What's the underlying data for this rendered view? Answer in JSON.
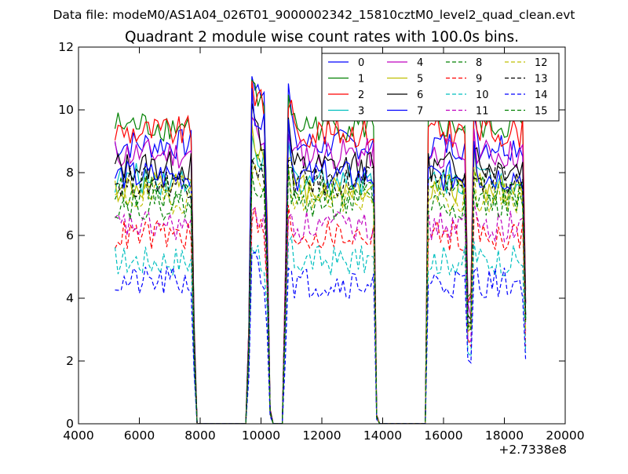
{
  "figure": {
    "suptitle": "Data file: modeM0/AS1A04_026T01_9000002342_15810cztM0_level2_quad_clean.evt"
  },
  "chart_data": {
    "type": "line",
    "title": "Quadrant 2 module wise count rates with 100.0s bins.",
    "xlabel": "",
    "ylabel": "",
    "x_offset_label": "+2.7338e8",
    "xlim": [
      4000,
      20000
    ],
    "ylim": [
      0,
      12
    ],
    "x_ticks": [
      4000,
      6000,
      8000,
      10000,
      12000,
      14000,
      16000,
      18000,
      20000
    ],
    "y_ticks": [
      0,
      2,
      4,
      6,
      8,
      10,
      12
    ],
    "grid": false,
    "legend_position": "top-right",
    "legend_columns": 4,
    "bin_seconds": 100,
    "time_profile": {
      "note_units": "x in seconds minus 2.7338e8",
      "segments": [
        {
          "x_start": 5200,
          "x_end": 7700,
          "level": 1.0
        },
        {
          "x_start": 7700,
          "x_end": 7850,
          "level": "falling"
        },
        {
          "x_start": 7850,
          "x_end": 9550,
          "level": 0
        },
        {
          "x_start": 9700,
          "x_end": 10150,
          "level": 1.0
        },
        {
          "x_start": 10300,
          "x_end": 10750,
          "level": 0
        },
        {
          "x_start": 10850,
          "x_end": 13700,
          "level": 1.0
        },
        {
          "x_start": 13800,
          "x_end": 15400,
          "level": 0
        },
        {
          "x_start": 15500,
          "x_end": 16750,
          "level": 1.0
        },
        {
          "x_start": 16750,
          "x_end": 16950,
          "level": 0.45
        },
        {
          "x_start": 17000,
          "x_end": 18700,
          "level": 1.0
        }
      ]
    },
    "series": [
      {
        "name": "0",
        "color": "#0000ff",
        "style": "solid",
        "level": 8.9,
        "peak": 11.1
      },
      {
        "name": "1",
        "color": "#008000",
        "style": "solid",
        "level": 9.5,
        "peak": 10.9
      },
      {
        "name": "2",
        "color": "#ff0000",
        "style": "solid",
        "level": 9.3,
        "peak": 10.8
      },
      {
        "name": "3",
        "color": "#00bfbf",
        "style": "solid",
        "level": 7.8,
        "peak": 9.0
      },
      {
        "name": "4",
        "color": "#bf00bf",
        "style": "solid",
        "level": 8.6,
        "peak": 9.5
      },
      {
        "name": "5",
        "color": "#bfbf00",
        "style": "solid",
        "level": 7.5,
        "peak": 9.2
      },
      {
        "name": "6",
        "color": "#000000",
        "style": "solid",
        "level": 8.2,
        "peak": 9.8
      },
      {
        "name": "7",
        "color": "#0000ff",
        "style": "solid",
        "level": 7.9,
        "peak": 10.2
      },
      {
        "name": "8",
        "color": "#008000",
        "style": "dashed",
        "level": 7.4,
        "peak": 8.8
      },
      {
        "name": "9",
        "color": "#ff0000",
        "style": "dashed",
        "level": 6.0,
        "peak": 6.8
      },
      {
        "name": "10",
        "color": "#00bfbf",
        "style": "dashed",
        "level": 5.2,
        "peak": 5.9
      },
      {
        "name": "11",
        "color": "#bf00bf",
        "style": "dashed",
        "level": 6.3,
        "peak": 7.0
      },
      {
        "name": "12",
        "color": "#bfbf00",
        "style": "dashed",
        "level": 7.2,
        "peak": 8.0
      },
      {
        "name": "13",
        "color": "#000000",
        "style": "dashed",
        "level": 7.7,
        "peak": 8.5
      },
      {
        "name": "14",
        "color": "#0000ff",
        "style": "dashed",
        "level": 4.5,
        "peak": 5.4
      },
      {
        "name": "15",
        "color": "#008000",
        "style": "dashed",
        "level": 7.0,
        "peak": 7.9
      }
    ]
  }
}
